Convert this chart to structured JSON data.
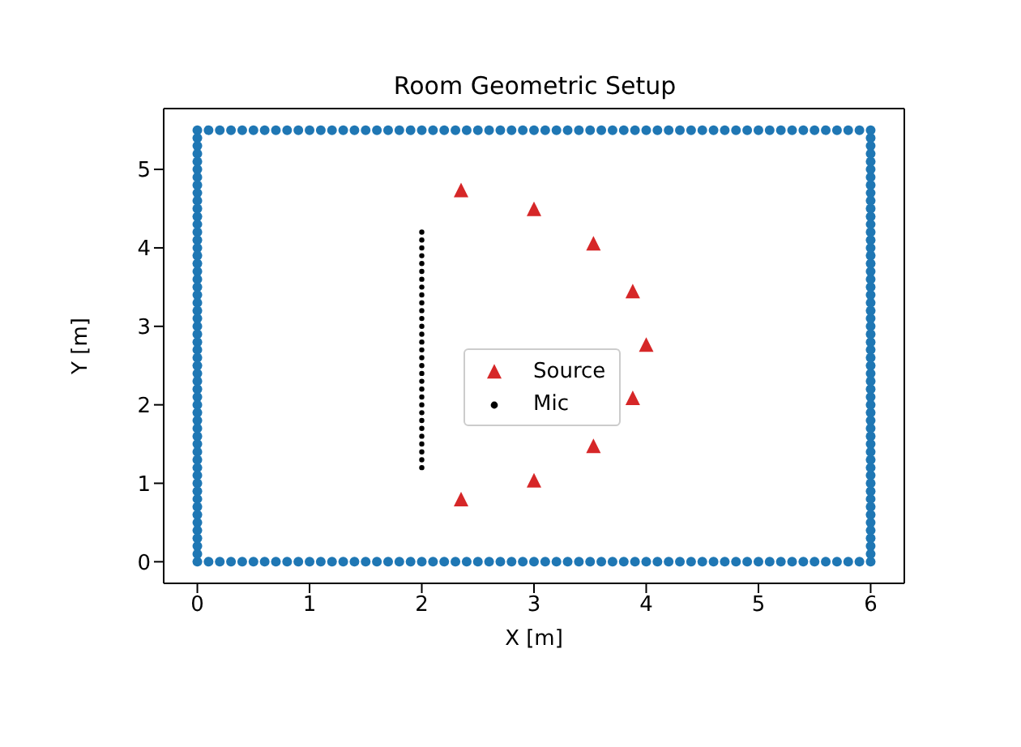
{
  "chart_data": {
    "type": "scatter",
    "title": "Room Geometric Setup",
    "xlabel": "X [m]",
    "ylabel": "Y [m]",
    "xlim": [
      -0.3,
      6.3
    ],
    "ylim": [
      -0.275,
      5.775
    ],
    "xticks": [
      0,
      1,
      2,
      3,
      4,
      5,
      6
    ],
    "yticks": [
      0,
      1,
      2,
      3,
      4,
      5
    ],
    "grid": false,
    "legend": "center",
    "series": [
      {
        "color": "#1f77b4",
        "marker": "circle",
        "x": [
          0,
          0.1,
          0.2,
          0.3,
          0.4,
          0.5,
          0.6,
          0.7,
          0.8,
          0.9,
          1,
          1.1,
          1.2,
          1.3,
          1.4,
          1.5,
          1.6,
          1.7,
          1.8,
          1.9,
          2,
          2.1,
          2.2,
          2.3,
          2.4,
          2.5,
          2.6,
          2.7,
          2.8,
          2.9,
          3,
          3.1,
          3.2,
          3.3,
          3.4,
          3.5,
          3.6,
          3.7,
          3.8,
          3.9,
          4,
          4.1,
          4.2,
          4.3,
          4.4,
          4.5,
          4.6,
          4.7,
          4.8,
          4.9,
          5,
          5.1,
          5.2,
          5.3,
          5.4,
          5.5,
          5.6,
          5.7,
          5.8,
          5.9,
          6,
          6,
          6,
          6,
          6,
          6,
          6,
          6,
          6,
          6,
          6,
          6,
          6,
          6,
          6,
          6,
          6,
          6,
          6,
          6,
          6,
          6,
          6,
          6,
          6,
          6,
          6,
          6,
          6,
          6,
          6,
          6,
          6,
          6,
          6,
          6,
          6,
          6,
          6,
          6,
          6,
          6,
          6,
          6,
          6,
          6,
          6,
          6,
          6,
          6,
          6,
          6,
          6,
          6,
          6,
          6,
          5.9,
          5.8,
          5.7,
          5.6,
          5.5,
          5.4,
          5.3,
          5.2,
          5.1,
          5,
          4.9,
          4.8,
          4.7,
          4.6,
          4.5,
          4.4,
          4.3,
          4.2,
          4.1,
          4,
          3.9,
          3.8,
          3.7,
          3.6,
          3.5,
          3.4,
          3.3,
          3.2,
          3.1,
          3,
          2.9,
          2.8,
          2.7,
          2.6,
          2.5,
          2.4,
          2.3,
          2.2,
          2.1,
          2,
          1.9,
          1.8,
          1.7,
          1.6,
          1.5,
          1.4,
          1.3,
          1.2,
          1.1,
          1,
          0.9,
          0.8,
          0.7,
          0.6,
          0.5,
          0.4,
          0.3,
          0.2,
          0.1,
          0,
          0,
          0,
          0,
          0,
          0,
          0,
          0,
          0,
          0,
          0,
          0,
          0,
          0,
          0,
          0,
          0,
          0,
          0,
          0,
          0,
          0,
          0,
          0,
          0,
          0,
          0,
          0,
          0,
          0,
          0,
          0,
          0,
          0,
          0,
          0,
          0,
          0,
          0,
          0,
          0,
          0,
          0,
          0,
          0,
          0,
          0,
          0,
          0,
          0,
          0,
          0,
          0,
          0,
          0
        ],
        "values": [
          0,
          0,
          0,
          0,
          0,
          0,
          0,
          0,
          0,
          0,
          0,
          0,
          0,
          0,
          0,
          0,
          0,
          0,
          0,
          0,
          0,
          0,
          0,
          0,
          0,
          0,
          0,
          0,
          0,
          0,
          0,
          0,
          0,
          0,
          0,
          0,
          0,
          0,
          0,
          0,
          0,
          0,
          0,
          0,
          0,
          0,
          0,
          0,
          0,
          0,
          0,
          0,
          0,
          0,
          0,
          0,
          0,
          0,
          0,
          0,
          0,
          0.1,
          0.2,
          0.3,
          0.4,
          0.5,
          0.6,
          0.7,
          0.8,
          0.9,
          1,
          1.1,
          1.2,
          1.3,
          1.4,
          1.5,
          1.6,
          1.7,
          1.8,
          1.9,
          2,
          2.1,
          2.2,
          2.3,
          2.4,
          2.5,
          2.6,
          2.7,
          2.8,
          2.9,
          3,
          3.1,
          3.2,
          3.3,
          3.4,
          3.5,
          3.6,
          3.7,
          3.8,
          3.9,
          4,
          4.1,
          4.2,
          4.3,
          4.4,
          4.5,
          4.6,
          4.7,
          4.8,
          4.9,
          5,
          5.1,
          5.2,
          5.3,
          5.4,
          5.5,
          5.5,
          5.5,
          5.5,
          5.5,
          5.5,
          5.5,
          5.5,
          5.5,
          5.5,
          5.5,
          5.5,
          5.5,
          5.5,
          5.5,
          5.5,
          5.5,
          5.5,
          5.5,
          5.5,
          5.5,
          5.5,
          5.5,
          5.5,
          5.5,
          5.5,
          5.5,
          5.5,
          5.5,
          5.5,
          5.5,
          5.5,
          5.5,
          5.5,
          5.5,
          5.5,
          5.5,
          5.5,
          5.5,
          5.5,
          5.5,
          5.5,
          5.5,
          5.5,
          5.5,
          5.5,
          5.5,
          5.5,
          5.5,
          5.5,
          5.5,
          5.5,
          5.5,
          5.5,
          5.5,
          5.5,
          5.5,
          5.5,
          5.5,
          5.5,
          5.5,
          5.4,
          5.3,
          5.2,
          5.1,
          5,
          4.9,
          4.8,
          4.7,
          4.6,
          4.5,
          4.4,
          4.3,
          4.2,
          4.1,
          4,
          3.9,
          3.8,
          3.7,
          3.6,
          3.5,
          3.4,
          3.3,
          3.2,
          3.1,
          3,
          2.9,
          2.8,
          2.7,
          2.6,
          2.5,
          2.4,
          2.3,
          2.2,
          2.1,
          2,
          1.9,
          1.8,
          1.7,
          1.6,
          1.5,
          1.4,
          1.3,
          1.2,
          1.1,
          1,
          0.9,
          0.8,
          0.7,
          0.6,
          0.5,
          0.4,
          0.3,
          0.2,
          0.1
        ]
      },
      {
        "name": "Source",
        "color": "#d62728",
        "marker": "triangle",
        "x": [
          2.35,
          3,
          3.53,
          3.88,
          4,
          3.88,
          3.53,
          3,
          2.35
        ],
        "values": [
          4.72,
          4.48,
          4.04,
          3.43,
          2.75,
          2.07,
          1.46,
          1.02,
          0.78
        ]
      },
      {
        "name": "Mic",
        "color": "#000000",
        "marker": "circle",
        "x": [
          2,
          2,
          2,
          2,
          2,
          2,
          2,
          2,
          2,
          2,
          2,
          2,
          2,
          2,
          2,
          2,
          2,
          2,
          2,
          2,
          2,
          2,
          2,
          2,
          2,
          2,
          2,
          2,
          2,
          2,
          2
        ],
        "values": [
          1.2,
          1.3,
          1.4,
          1.5,
          1.6,
          1.7,
          1.8,
          1.9,
          2,
          2.1,
          2.2,
          2.3,
          2.4,
          2.5,
          2.6,
          2.7,
          2.8,
          2.9,
          3,
          3.1,
          3.2,
          3.3,
          3.4,
          3.5,
          3.6,
          3.7,
          3.8,
          3.9,
          4,
          4.1,
          4.2
        ]
      }
    ]
  }
}
